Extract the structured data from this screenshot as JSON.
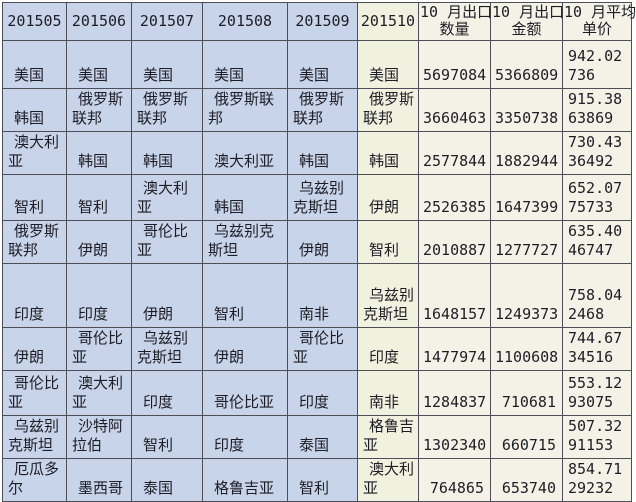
{
  "colors": {
    "blue_column_bg": "#c8d4e9",
    "cream_column_bg": "#f1f1df",
    "numeric_column_bg": "#f4f2e6",
    "grid_border": "#4e4e58",
    "text": "#1d1d26"
  },
  "table": {
    "header_lines": [
      [
        "201505",
        ""
      ],
      [
        "201506",
        ""
      ],
      [
        "201507",
        ""
      ],
      [
        "201508",
        ""
      ],
      [
        "201509",
        ""
      ],
      [
        "201510",
        ""
      ],
      [
        "10 月出口",
        "数量"
      ],
      [
        "10 月出口",
        "金额"
      ],
      [
        "10 月平均",
        "单价"
      ]
    ]
  },
  "chart_data": {
    "type": "table",
    "columns": [
      "201505",
      "201506",
      "201507",
      "201508",
      "201509",
      "201510",
      "10 月出口数量",
      "10 月出口金额",
      "10 月平均单价"
    ],
    "rows": [
      [
        "美国",
        "美国",
        "美国",
        "美国",
        "美国",
        "美国",
        "5697084",
        "5366809",
        "942.02736"
      ],
      [
        "韩国",
        "俄罗斯联邦",
        "俄罗斯联邦",
        "俄罗斯联邦",
        "俄罗斯联邦",
        "俄罗斯联邦",
        "3660463",
        "3350738",
        "915.3863869"
      ],
      [
        "澳大利亚",
        "韩国",
        "韩国",
        "澳大利亚",
        "韩国",
        "韩国",
        "2577844",
        "1882944",
        "730.4336492"
      ],
      [
        "智利",
        "智利",
        "澳大利亚",
        "韩国",
        "乌兹别克斯坦",
        "伊朗",
        "2526385",
        "1647399",
        "652.0775733"
      ],
      [
        "俄罗斯联邦",
        "伊朗",
        "哥伦比亚",
        "乌兹别克斯坦",
        "伊朗",
        "智利",
        "2010887",
        "1277727",
        "635.4046747"
      ],
      [
        "印度",
        "印度",
        "伊朗",
        "智利",
        "南非",
        "乌兹别克斯坦",
        "1648157",
        "1249373",
        "758.042468"
      ],
      [
        "伊朗",
        "哥伦比亚",
        "乌兹别克斯坦",
        "伊朗",
        "哥伦比亚",
        "印度",
        "1477974",
        "1100608",
        "744.6734516"
      ],
      [
        "哥伦比亚",
        "澳大利亚",
        "印度",
        "哥伦比亚",
        "印度",
        "南非",
        "1284837",
        "710681",
        "553.1293075"
      ],
      [
        "乌兹别克斯坦",
        "沙特阿拉伯",
        "智利",
        "印度",
        "泰国",
        "格鲁吉亚",
        "1302340",
        "660715",
        "507.3291153"
      ],
      [
        "厄瓜多尔",
        "墨西哥",
        "泰国",
        "格鲁吉亚",
        "智利",
        "澳大利亚",
        "764865",
        "653740",
        "854.7129232"
      ]
    ]
  }
}
